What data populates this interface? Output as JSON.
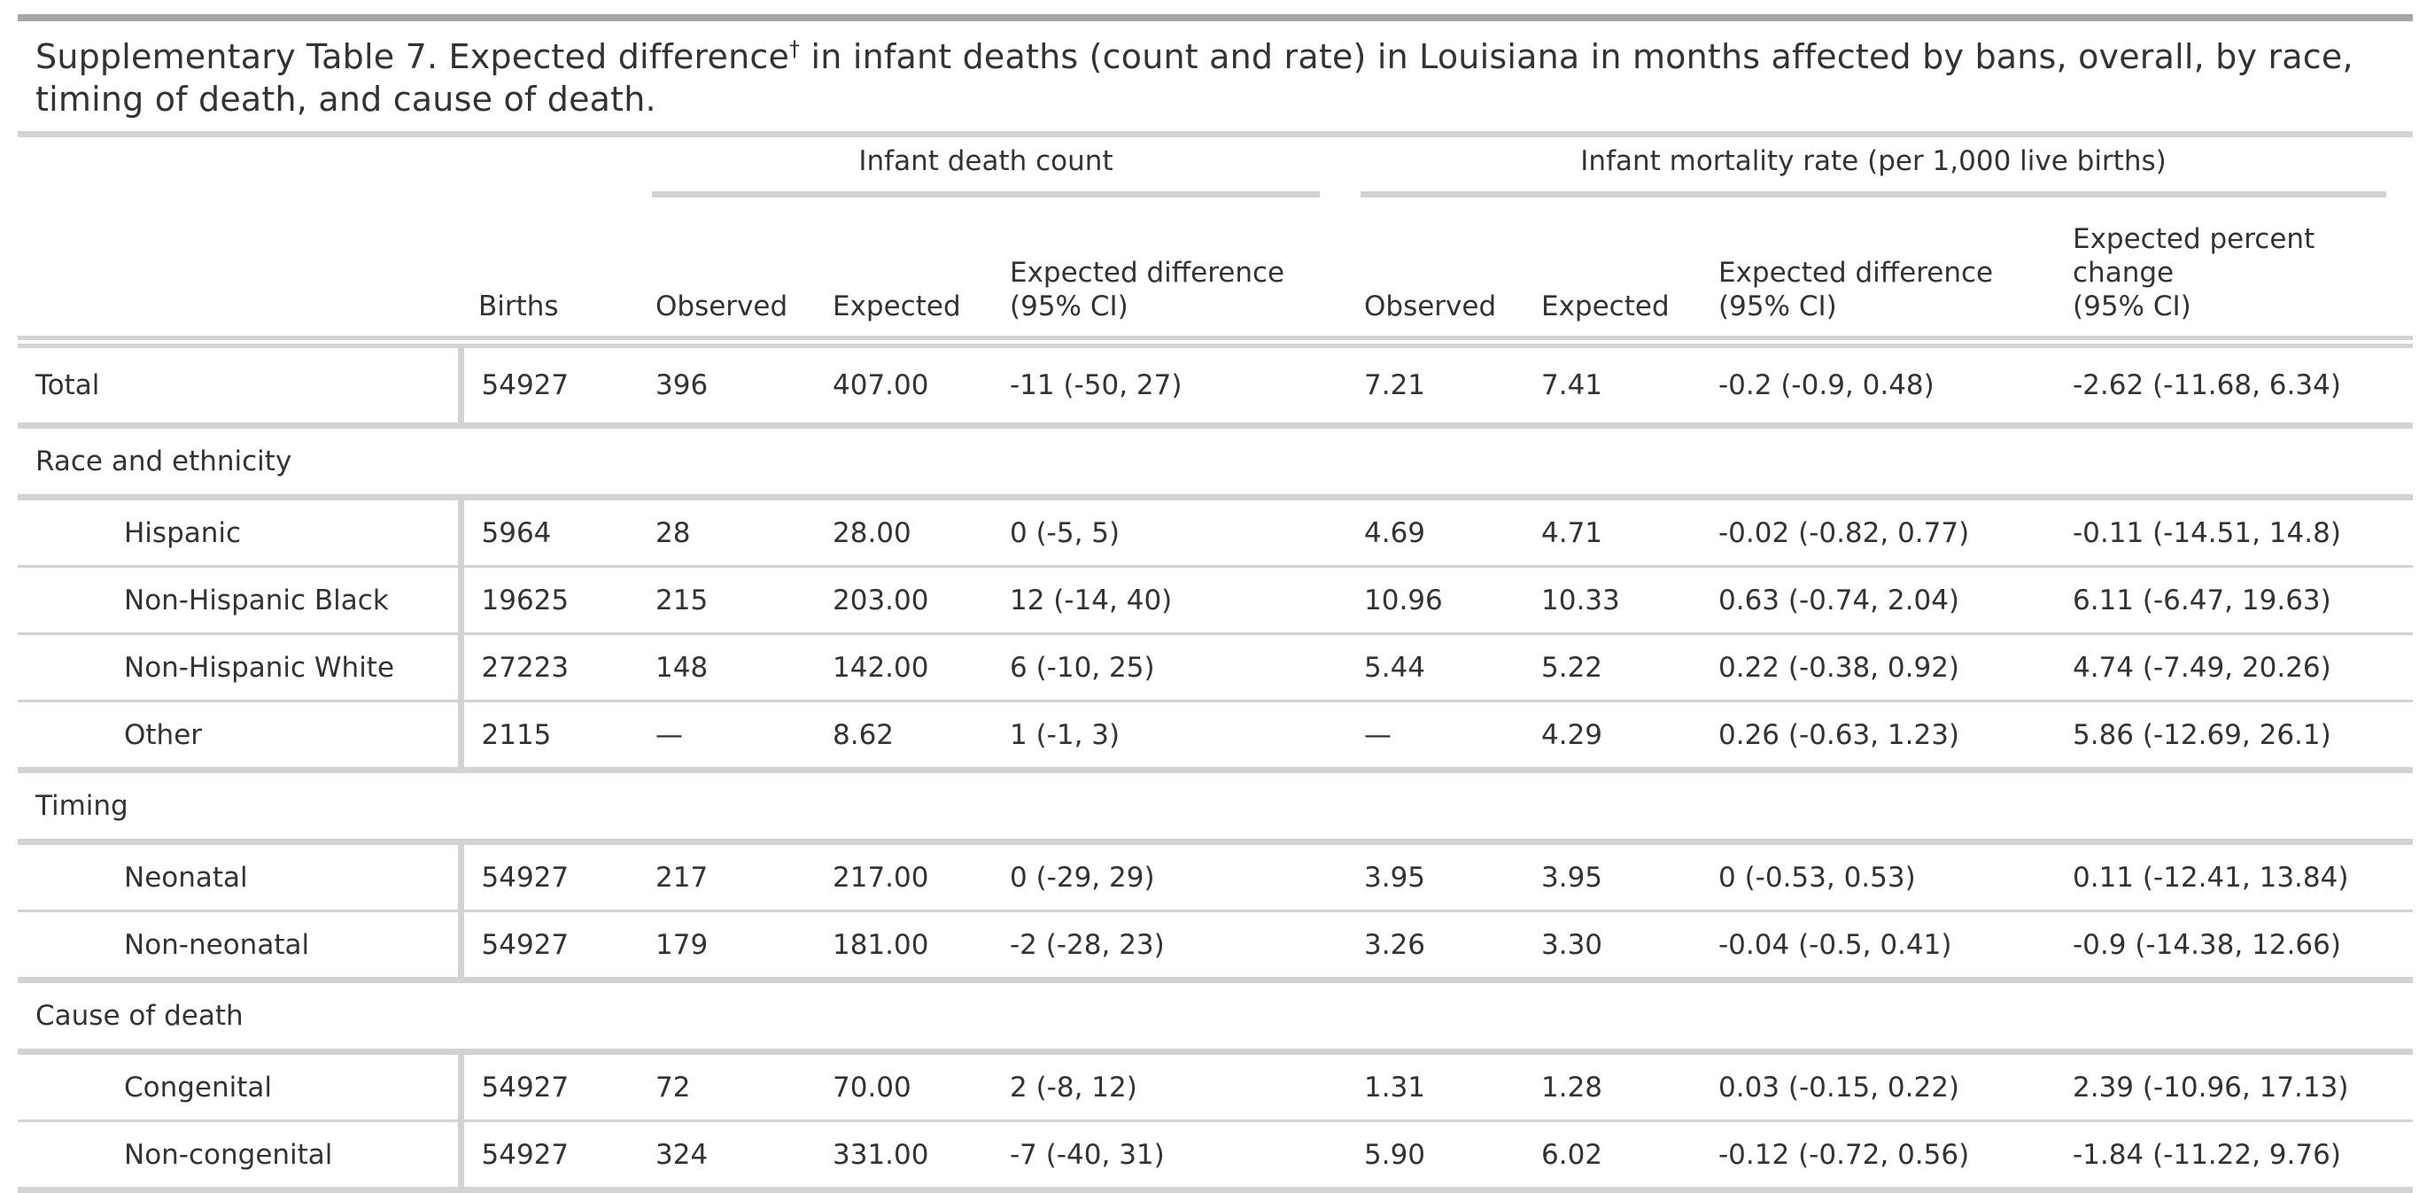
{
  "title": {
    "text_before": "Supplementary Table 7. Expected difference",
    "dagger": "†",
    "text_after": " in infant deaths (count and rate) in Louisiana in months affected by bans, overall, by race, timing of death, and cause of death."
  },
  "spanners": {
    "count": "Infant death count",
    "rate": "Infant mortality rate (per 1,000 live births)"
  },
  "columns": {
    "births": "Births",
    "count_observed": "Observed",
    "count_expected": "Expected",
    "count_diff_line1": "Expected difference",
    "count_diff_line2": "(95% CI)",
    "rate_observed": "Observed",
    "rate_expected": "Expected",
    "rate_diff_line1": "Expected difference",
    "rate_diff_line2": "(95% CI)",
    "pct_line1": "Expected percent",
    "pct_line2": "change",
    "pct_line3": "(95% CI)"
  },
  "total": {
    "label": "Total",
    "births": "54927",
    "count_observed": "396",
    "count_expected": "407.00",
    "count_diff": "-11 (-50, 27)",
    "rate_observed": "7.21",
    "rate_expected": "7.41",
    "rate_diff": "-0.2 (-0.9, 0.48)",
    "pct": "-2.62 (-11.68, 6.34)"
  },
  "groups": [
    {
      "label": "Race and ethnicity",
      "rows": [
        {
          "label": "Hispanic",
          "births": "5964",
          "count_observed": "28",
          "count_expected": "28.00",
          "count_diff": "0 (-5, 5)",
          "rate_observed": "4.69",
          "rate_expected": "4.71",
          "rate_diff": "-0.02 (-0.82, 0.77)",
          "pct": "-0.11 (-14.51, 14.8)"
        },
        {
          "label": "Non-Hispanic Black",
          "births": "19625",
          "count_observed": "215",
          "count_expected": "203.00",
          "count_diff": "12 (-14, 40)",
          "rate_observed": "10.96",
          "rate_expected": "10.33",
          "rate_diff": "0.63 (-0.74, 2.04)",
          "pct": "6.11 (-6.47, 19.63)"
        },
        {
          "label": "Non-Hispanic White",
          "births": "27223",
          "count_observed": "148",
          "count_expected": "142.00",
          "count_diff": "6 (-10, 25)",
          "rate_observed": "5.44",
          "rate_expected": "5.22",
          "rate_diff": "0.22 (-0.38, 0.92)",
          "pct": "4.74 (-7.49, 20.26)"
        },
        {
          "label": "Other",
          "births": "2115",
          "count_observed": "—",
          "count_expected": "8.62",
          "count_diff": "1 (-1, 3)",
          "rate_observed": "—",
          "rate_expected": "4.29",
          "rate_diff": "0.26 (-0.63, 1.23)",
          "pct": "5.86 (-12.69, 26.1)"
        }
      ]
    },
    {
      "label": "Timing",
      "rows": [
        {
          "label": "Neonatal",
          "births": "54927",
          "count_observed": "217",
          "count_expected": "217.00",
          "count_diff": "0 (-29, 29)",
          "rate_observed": "3.95",
          "rate_expected": "3.95",
          "rate_diff": "0 (-0.53, 0.53)",
          "pct": "0.11 (-12.41, 13.84)"
        },
        {
          "label": "Non-neonatal",
          "births": "54927",
          "count_observed": "179",
          "count_expected": "181.00",
          "count_diff": "-2 (-28, 23)",
          "rate_observed": "3.26",
          "rate_expected": "3.30",
          "rate_diff": "-0.04 (-0.5, 0.41)",
          "pct": "-0.9 (-14.38, 12.66)"
        }
      ]
    },
    {
      "label": "Cause of death",
      "rows": [
        {
          "label": "Congenital",
          "births": "54927",
          "count_observed": "72",
          "count_expected": "70.00",
          "count_diff": "2 (-8, 12)",
          "rate_observed": "1.31",
          "rate_expected": "1.28",
          "rate_diff": "0.03 (-0.15, 0.22)",
          "pct": "2.39 (-10.96, 17.13)"
        },
        {
          "label": "Non-congenital",
          "births": "54927",
          "count_observed": "324",
          "count_expected": "331.00",
          "count_diff": "-7 (-40, 31)",
          "rate_observed": "5.90",
          "rate_expected": "6.02",
          "rate_diff": "-0.12 (-0.72, 0.56)",
          "pct": "-1.84 (-11.22, 9.76)"
        }
      ]
    }
  ]
}
